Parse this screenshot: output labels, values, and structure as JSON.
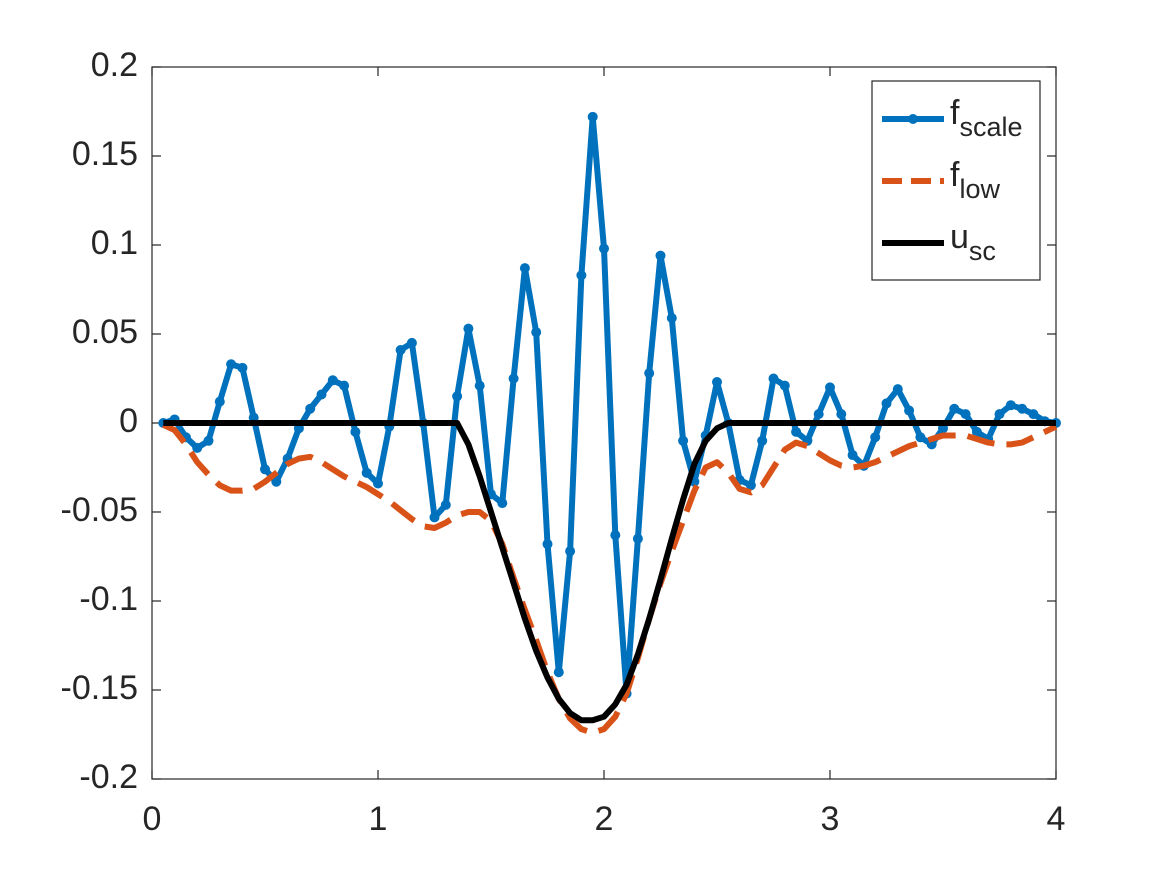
{
  "chart_data": {
    "type": "line",
    "x": [
      0.05,
      0.1,
      0.15,
      0.2,
      0.25,
      0.3,
      0.35,
      0.4,
      0.45,
      0.5,
      0.55,
      0.6,
      0.65,
      0.7,
      0.75,
      0.8,
      0.85,
      0.9,
      0.95,
      1.0,
      1.05,
      1.1,
      1.15,
      1.2,
      1.25,
      1.3,
      1.35,
      1.4,
      1.45,
      1.5,
      1.55,
      1.6,
      1.65,
      1.7,
      1.75,
      1.8,
      1.85,
      1.9,
      1.95,
      2.0,
      2.05,
      2.1,
      2.15,
      2.2,
      2.25,
      2.3,
      2.35,
      2.4,
      2.45,
      2.5,
      2.55,
      2.6,
      2.65,
      2.7,
      2.75,
      2.8,
      2.85,
      2.9,
      2.95,
      3.0,
      3.05,
      3.1,
      3.15,
      3.2,
      3.25,
      3.3,
      3.35,
      3.4,
      3.45,
      3.5,
      3.55,
      3.6,
      3.65,
      3.7,
      3.75,
      3.8,
      3.85,
      3.9,
      3.95,
      4.0
    ],
    "series": [
      {
        "name": [
          "f",
          "scale"
        ],
        "color": "#0072bd",
        "style": "solid",
        "markers": true,
        "values": [
          0,
          0.002,
          -0.008,
          -0.014,
          -0.01,
          0.012,
          0.033,
          0.031,
          0.003,
          -0.026,
          -0.033,
          -0.02,
          -0.003,
          0.008,
          0.016,
          0.024,
          0.021,
          -0.005,
          -0.028,
          -0.034,
          -0.002,
          0.041,
          0.045,
          0.0,
          -0.053,
          -0.046,
          0.015,
          0.053,
          0.021,
          -0.04,
          -0.045,
          0.025,
          0.087,
          0.051,
          -0.068,
          -0.14,
          -0.072,
          0.083,
          0.172,
          0.098,
          -0.063,
          -0.152,
          -0.065,
          0.028,
          0.094,
          0.059,
          -0.01,
          -0.033,
          -0.007,
          0.023,
          0.0,
          -0.032,
          -0.035,
          -0.01,
          0.025,
          0.021,
          -0.005,
          -0.01,
          0.005,
          0.02,
          0.005,
          -0.018,
          -0.024,
          -0.008,
          0.011,
          0.019,
          0.007,
          -0.008,
          -0.012,
          -0.003,
          0.008,
          0.005,
          -0.005,
          -0.009,
          0.005,
          0.01,
          0.008,
          0.005,
          0.001,
          0.0
        ]
      },
      {
        "name": [
          "f",
          "low"
        ],
        "color": "#d95319",
        "style": "dashed",
        "markers": false,
        "values": [
          -0.001,
          -0.004,
          -0.012,
          -0.022,
          -0.029,
          -0.035,
          -0.038,
          -0.038,
          -0.037,
          -0.033,
          -0.028,
          -0.023,
          -0.02,
          -0.019,
          -0.022,
          -0.026,
          -0.03,
          -0.033,
          -0.036,
          -0.04,
          -0.044,
          -0.049,
          -0.054,
          -0.058,
          -0.059,
          -0.056,
          -0.052,
          -0.05,
          -0.05,
          -0.055,
          -0.068,
          -0.087,
          -0.105,
          -0.122,
          -0.14,
          -0.155,
          -0.166,
          -0.172,
          -0.174,
          -0.172,
          -0.165,
          -0.152,
          -0.132,
          -0.11,
          -0.09,
          -0.072,
          -0.055,
          -0.038,
          -0.025,
          -0.022,
          -0.028,
          -0.037,
          -0.039,
          -0.035,
          -0.025,
          -0.015,
          -0.011,
          -0.013,
          -0.017,
          -0.021,
          -0.024,
          -0.025,
          -0.024,
          -0.022,
          -0.019,
          -0.016,
          -0.013,
          -0.011,
          -0.009,
          -0.007,
          -0.007,
          -0.007,
          -0.009,
          -0.011,
          -0.012,
          -0.012,
          -0.011,
          -0.008,
          -0.005,
          -0.002
        ]
      },
      {
        "name": [
          "u",
          "sc"
        ],
        "color": "#000000",
        "style": "solid",
        "markers": false,
        "values": [
          0,
          0,
          0,
          0,
          0,
          0,
          0,
          0,
          0,
          0,
          0,
          0,
          0,
          0,
          0,
          0,
          0,
          0,
          0,
          0,
          0,
          0,
          0,
          0,
          0,
          0,
          0,
          -0.012,
          -0.03,
          -0.05,
          -0.07,
          -0.09,
          -0.11,
          -0.128,
          -0.143,
          -0.155,
          -0.163,
          -0.167,
          -0.167,
          -0.165,
          -0.158,
          -0.147,
          -0.13,
          -0.11,
          -0.088,
          -0.065,
          -0.043,
          -0.023,
          -0.01,
          -0.003,
          0,
          0,
          0,
          0,
          0,
          0,
          0,
          0,
          0,
          0,
          0,
          0,
          0,
          0,
          0,
          0,
          0,
          0,
          0,
          0,
          0,
          0,
          0,
          0,
          0,
          0,
          0,
          0,
          0,
          0
        ]
      }
    ],
    "xlim": [
      0,
      4
    ],
    "xticks": [
      0,
      1,
      2,
      3,
      4
    ],
    "ylim": [
      -0.2,
      0.2
    ],
    "yticks": [
      -0.2,
      -0.15,
      -0.1,
      -0.05,
      0,
      0.05,
      0.1,
      0.15,
      0.2
    ],
    "grid": false,
    "legend": "top-right"
  }
}
